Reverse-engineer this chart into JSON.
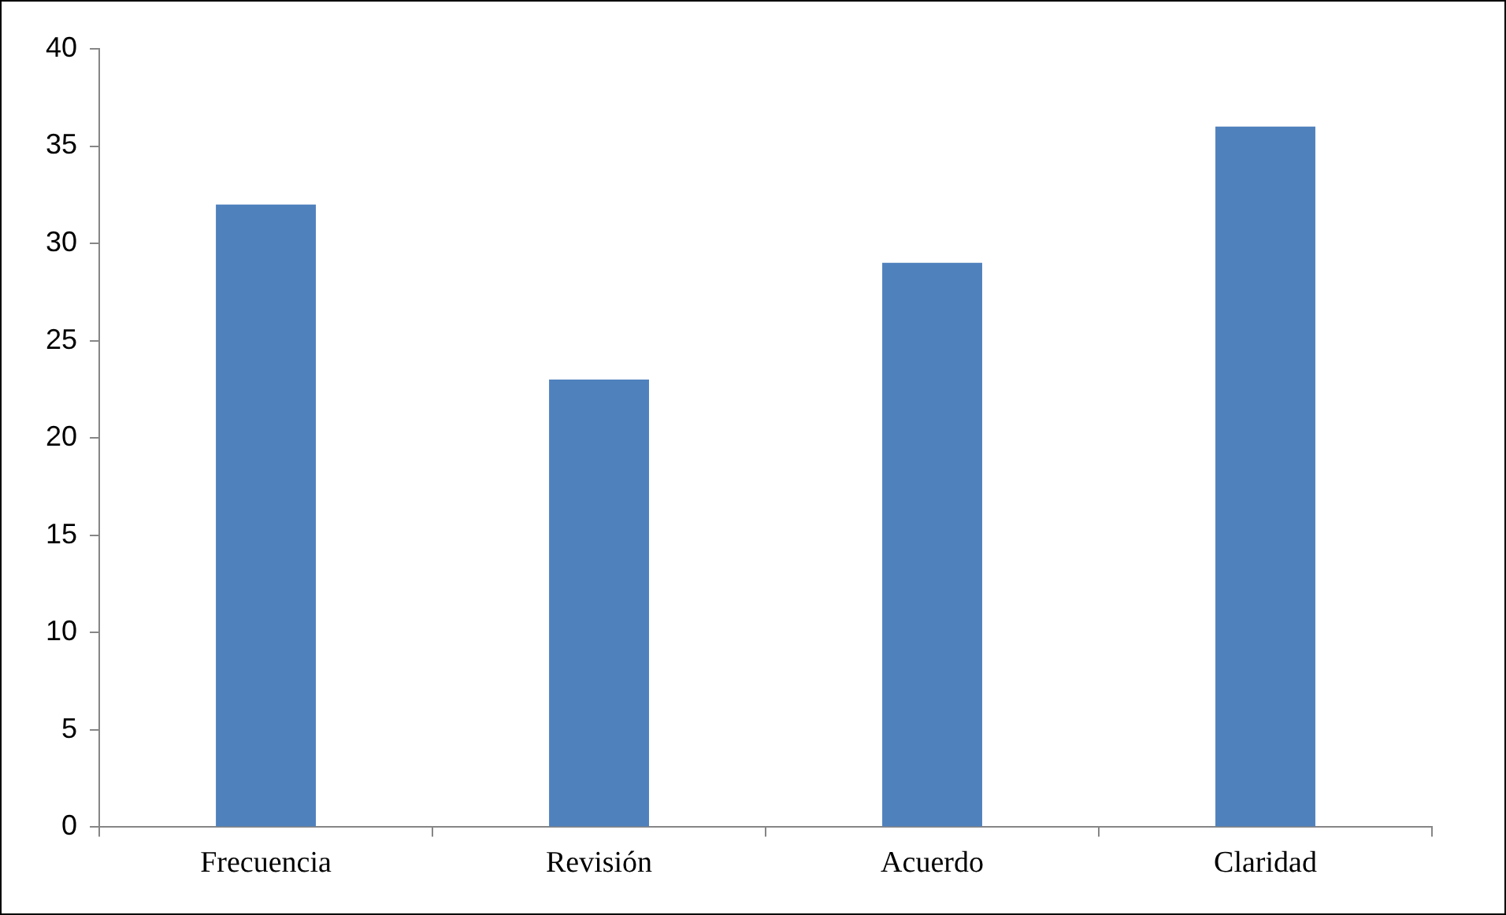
{
  "chart_data": {
    "type": "bar",
    "categories": [
      "Frecuencia",
      "Revisión",
      "Acuerdo",
      "Claridad"
    ],
    "values": [
      32,
      23,
      29,
      36
    ],
    "color": "#4f81bd",
    "ylim": [
      0,
      40
    ],
    "yticks": [
      0,
      5,
      10,
      15,
      20,
      25,
      30,
      35,
      40
    ]
  }
}
